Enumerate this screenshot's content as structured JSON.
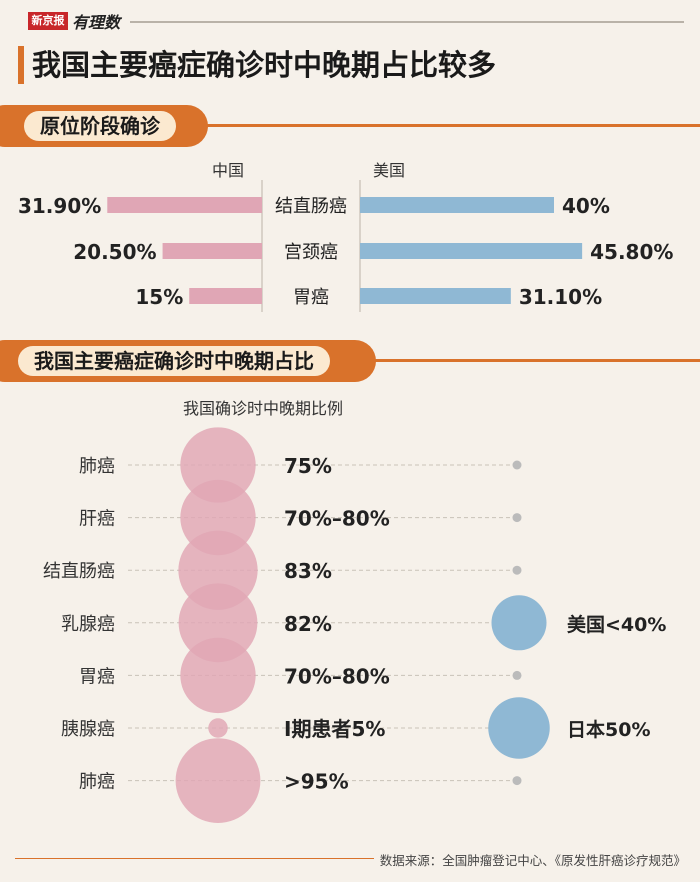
{
  "brand": {
    "primary": "新京报",
    "secondary": "有理数"
  },
  "title": "我国主要癌症确诊时中晚期占比较多",
  "colors": {
    "accent": "#d9722b",
    "china": "#e0a6b5",
    "usa": "#8fb8d4",
    "japan": "#8fb8d4",
    "dot": "#bbbbbb"
  },
  "section1": {
    "label": "原位阶段确诊"
  },
  "section2": {
    "label": "我国主要癌症确诊时中晚期占比"
  },
  "source": "数据来源：全国肿瘤登记中心、《原发性肝癌诊疗规范》",
  "chart_data": [
    {
      "type": "bar",
      "title": "原位阶段确诊",
      "categories": [
        "结直肠癌",
        "宫颈癌",
        "胃癌"
      ],
      "series": [
        {
          "name": "中国",
          "values": [
            31.9,
            20.5,
            15
          ],
          "labels": [
            "31.90%",
            "20.50%",
            "15%"
          ]
        },
        {
          "name": "美国",
          "values": [
            40,
            45.8,
            31.1
          ],
          "labels": [
            "40%",
            "45.80%",
            "31.10%"
          ]
        }
      ]
    },
    {
      "type": "scatter",
      "title": "我国主要癌症确诊时中晚期占比",
      "subtitle": "我国确诊时中晚期比例",
      "categories": [
        "肺癌",
        "肝癌",
        "结直肠癌",
        "乳腺癌",
        "胃癌",
        "胰腺癌",
        "肺癌"
      ],
      "china": {
        "values": [
          75,
          75,
          83,
          82,
          75,
          5,
          95
        ],
        "labels": [
          "75%",
          "70%–80%",
          "83%",
          "82%",
          "70%–80%",
          "Ⅰ期患者5%",
          ">95%"
        ]
      },
      "comparison": [
        {
          "index": 3,
          "label": "美国<40%",
          "value": 40
        },
        {
          "index": 5,
          "label": "日本50%",
          "value": 50
        }
      ]
    }
  ]
}
